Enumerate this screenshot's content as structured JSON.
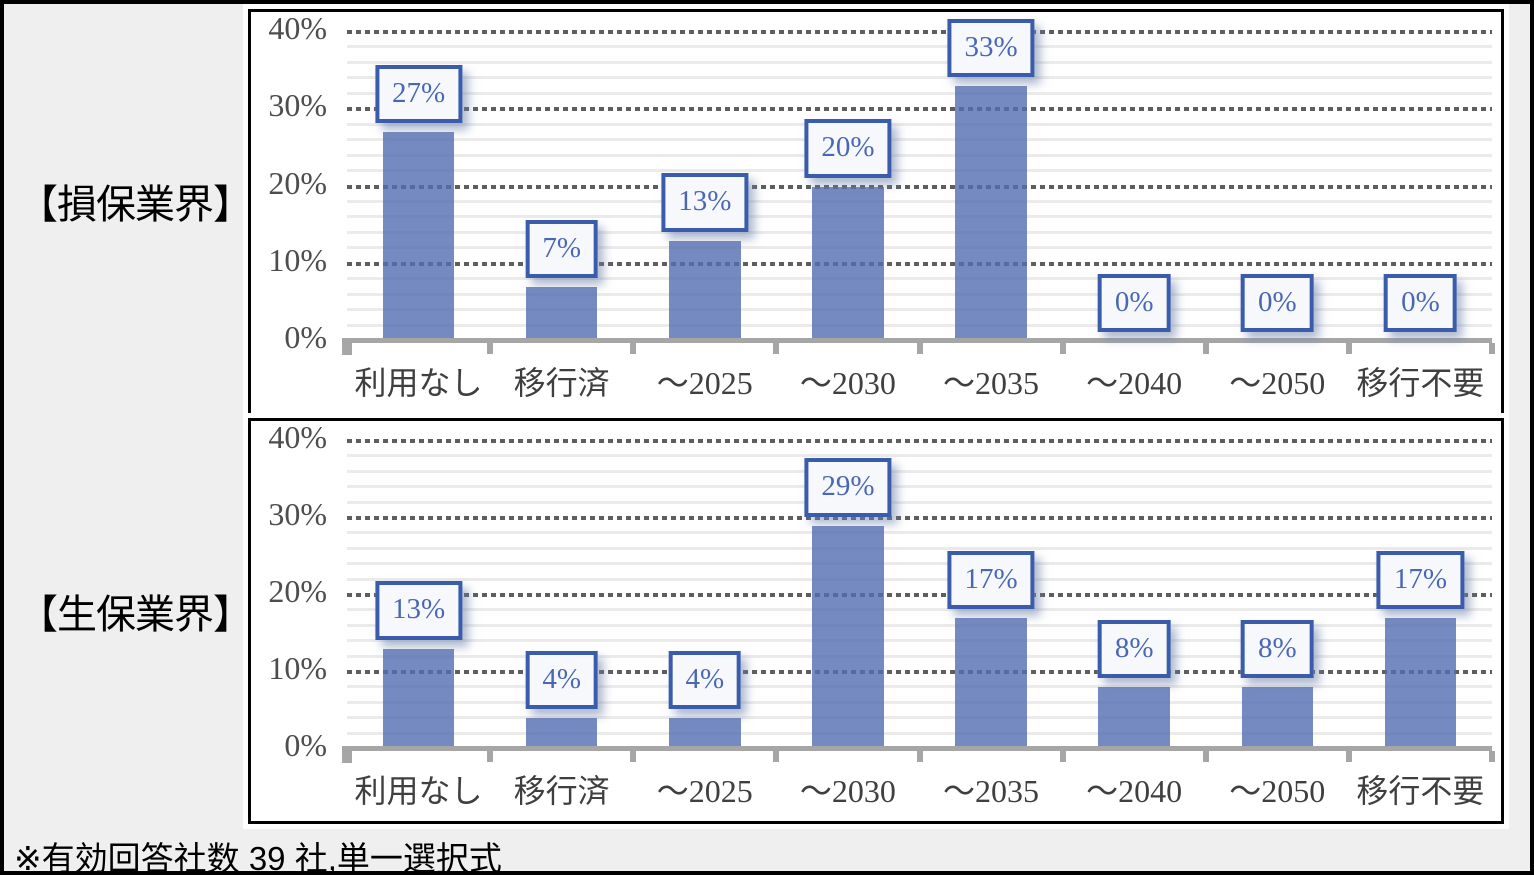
{
  "page": {
    "footer_note": "※有効回答社数 39 社,単一選択式",
    "colors": {
      "background": "#EFEFEF",
      "frame": "#000000",
      "chart_area_background": "#FFFFFF",
      "bar_fill": "#748AC1",
      "label_box_border": "#3A5CAB",
      "label_box_background": "#F6F8FC",
      "label_text": "#4A67B5",
      "major_gridline": "#5E5E5E",
      "minor_gridline": "#EBEBEB",
      "axis_line": "#A6A6A6",
      "tick_text": "#4D4D4D",
      "category_text": "#3F3F3F"
    }
  },
  "chart_data": [
    {
      "type": "bar",
      "title": "【損保業界】",
      "categories": [
        "利用なし",
        "移行済",
        "～2025",
        "～2030",
        "～2035",
        "～2040",
        "～2050",
        "移行不要"
      ],
      "values": [
        27,
        7,
        13,
        20,
        33,
        0,
        0,
        0
      ],
      "data_labels": [
        "27%",
        "7%",
        "13%",
        "20%",
        "33%",
        "0%",
        "0%",
        "0%"
      ],
      "xlabel": "",
      "ylabel": "",
      "ylim": [
        0,
        40
      ],
      "ytick_step": 10,
      "yminor_step": 2,
      "ytick_labels": [
        "0%",
        "10%",
        "20%",
        "30%",
        "40%"
      ],
      "grid": "major horizontal dotted + minor horizontal solid",
      "legend": "none"
    },
    {
      "type": "bar",
      "title": "【生保業界】",
      "categories": [
        "利用なし",
        "移行済",
        "～2025",
        "～2030",
        "～2035",
        "～2040",
        "～2050",
        "移行不要"
      ],
      "values": [
        13,
        4,
        4,
        29,
        17,
        8,
        8,
        17
      ],
      "data_labels": [
        "13%",
        "4%",
        "4%",
        "29%",
        "17%",
        "8%",
        "8%",
        "17%"
      ],
      "xlabel": "",
      "ylabel": "",
      "ylim": [
        0,
        40
      ],
      "ytick_step": 10,
      "yminor_step": 2,
      "ytick_labels": [
        "0%",
        "10%",
        "20%",
        "30%",
        "40%"
      ],
      "grid": "major horizontal dotted + minor horizontal solid",
      "legend": "none"
    }
  ]
}
